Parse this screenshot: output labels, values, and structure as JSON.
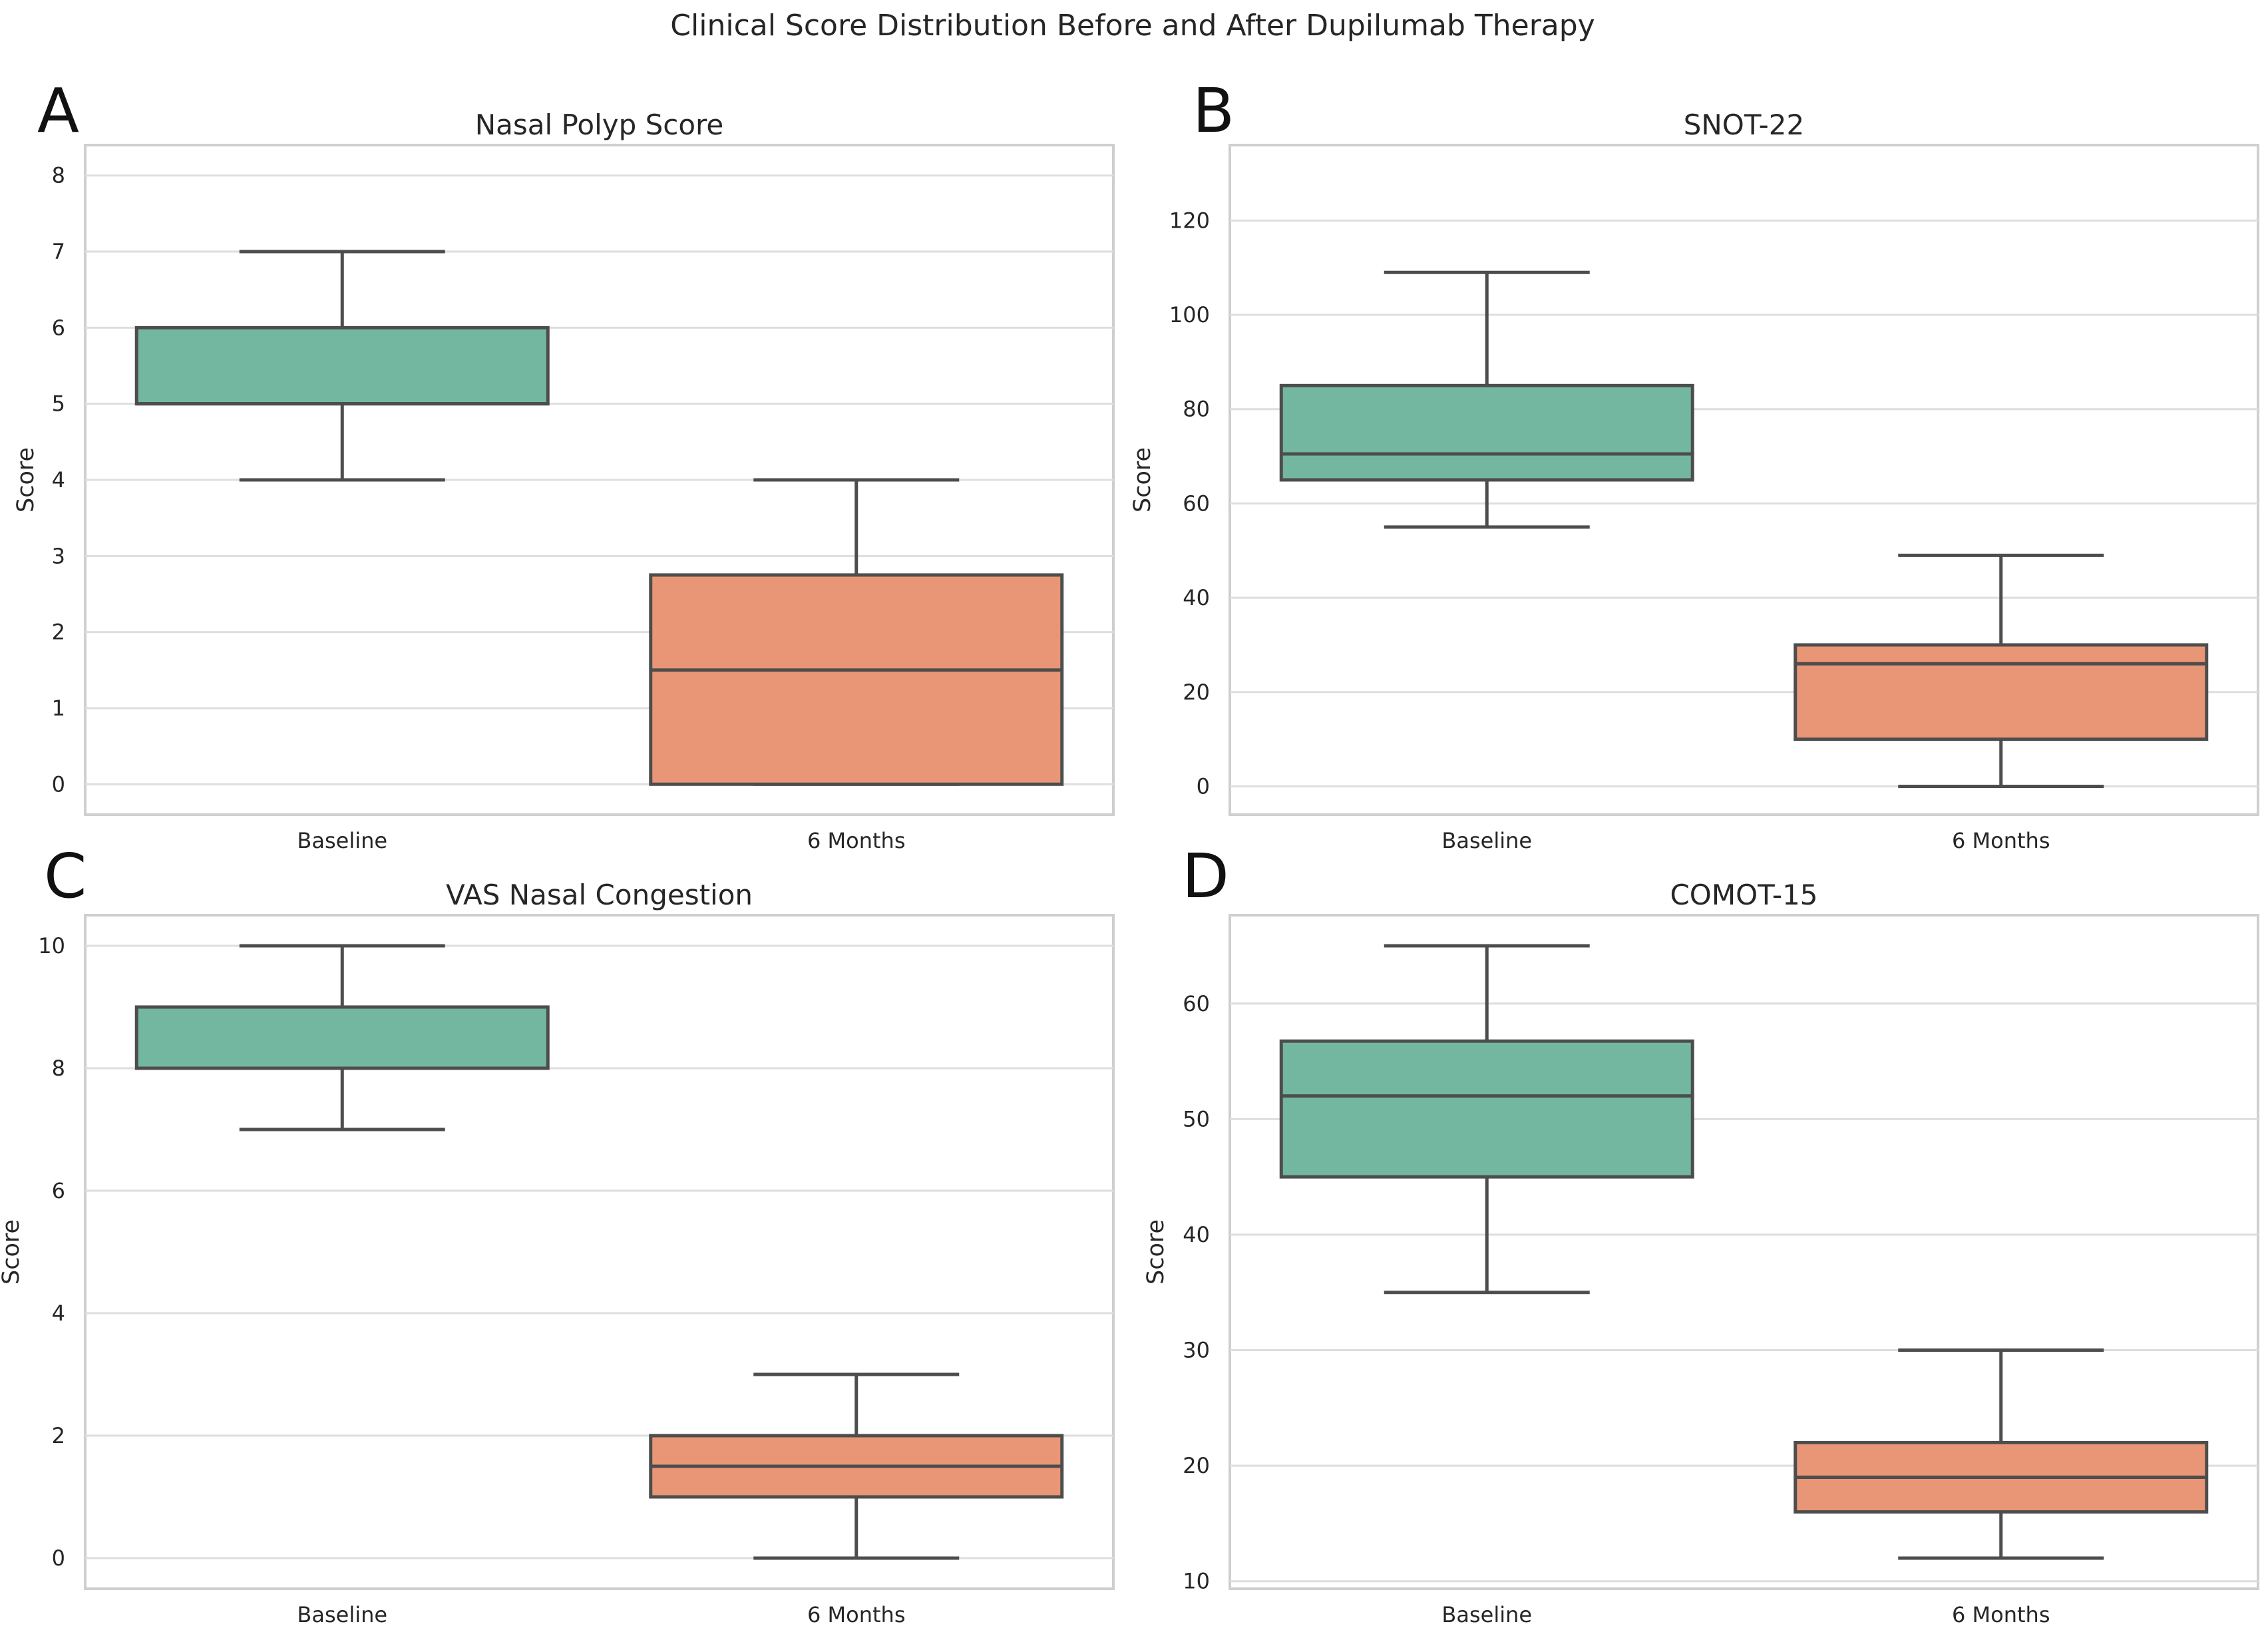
{
  "figure_title": "Clinical Score Distribution Before and After Dupilumab Therapy",
  "colors": {
    "baseline": "#73b7a1",
    "six_months": "#e99676",
    "box_edge": "#4d4d4d",
    "grid": "#dedede",
    "frame": "#cfcfcf"
  },
  "chart_data": [
    {
      "type": "box",
      "panel": "A",
      "title": "Nasal Polyp Score",
      "xlabel": "",
      "ylabel": "Score",
      "ylim": [
        -0.4,
        8.4
      ],
      "yticks": [
        0,
        1,
        2,
        3,
        4,
        5,
        6,
        7,
        8
      ],
      "yticklabels": [
        "0",
        "1",
        "2",
        "3",
        "4",
        "5",
        "6",
        "7",
        "8"
      ],
      "grid": true,
      "categories": [
        "Baseline",
        "6 Months"
      ],
      "boxes": [
        {
          "category": "Baseline",
          "whisker_low": 4,
          "q1": 5,
          "median": 5,
          "q3": 6,
          "whisker_high": 7,
          "color_key": "baseline"
        },
        {
          "category": "6 Months",
          "whisker_low": 0,
          "q1": 0,
          "median": 1.5,
          "q3": 2.75,
          "whisker_high": 4,
          "color_key": "six_months"
        }
      ]
    },
    {
      "type": "box",
      "panel": "B",
      "title": "SNOT-22",
      "xlabel": "",
      "ylabel": "Score",
      "ylim": [
        -6,
        136
      ],
      "yticks": [
        0,
        20,
        40,
        60,
        80,
        100,
        120
      ],
      "yticklabels": [
        "0",
        "20",
        "40",
        "60",
        "80",
        "100",
        "120"
      ],
      "grid": true,
      "categories": [
        "Baseline",
        "6 Months"
      ],
      "boxes": [
        {
          "category": "Baseline",
          "whisker_low": 55,
          "q1": 65,
          "median": 70.5,
          "q3": 85,
          "whisker_high": 109,
          "color_key": "baseline"
        },
        {
          "category": "6 Months",
          "whisker_low": 0,
          "q1": 10,
          "median": 26,
          "q3": 30,
          "whisker_high": 49,
          "color_key": "six_months"
        }
      ]
    },
    {
      "type": "box",
      "panel": "C",
      "title": "VAS Nasal Congestion",
      "xlabel": "",
      "ylabel": "Score",
      "ylim": [
        -0.5,
        10.5
      ],
      "yticks": [
        0,
        2,
        4,
        6,
        8,
        10
      ],
      "yticklabels": [
        "0",
        "2",
        "4",
        "6",
        "8",
        "10"
      ],
      "grid": true,
      "categories": [
        "Baseline",
        "6 Months"
      ],
      "boxes": [
        {
          "category": "Baseline",
          "whisker_low": 7,
          "q1": 8,
          "median": 8,
          "q3": 9,
          "whisker_high": 10,
          "color_key": "baseline"
        },
        {
          "category": "6 Months",
          "whisker_low": 0,
          "q1": 1,
          "median": 1.5,
          "q3": 2,
          "whisker_high": 3,
          "color_key": "six_months"
        }
      ]
    },
    {
      "type": "box",
      "panel": "D",
      "title": "COMOT-15",
      "xlabel": "",
      "ylabel": "Score",
      "ylim": [
        9.35,
        67.65
      ],
      "yticks": [
        10,
        20,
        30,
        40,
        50,
        60
      ],
      "yticklabels": [
        "10",
        "20",
        "30",
        "40",
        "50",
        "60"
      ],
      "grid": true,
      "categories": [
        "Baseline",
        "6 Months"
      ],
      "boxes": [
        {
          "category": "Baseline",
          "whisker_low": 35,
          "q1": 45,
          "median": 52,
          "q3": 56.75,
          "whisker_high": 65,
          "color_key": "baseline"
        },
        {
          "category": "6 Months",
          "whisker_low": 12,
          "q1": 16,
          "median": 19,
          "q3": 22,
          "whisker_high": 30,
          "color_key": "six_months"
        }
      ]
    }
  ]
}
